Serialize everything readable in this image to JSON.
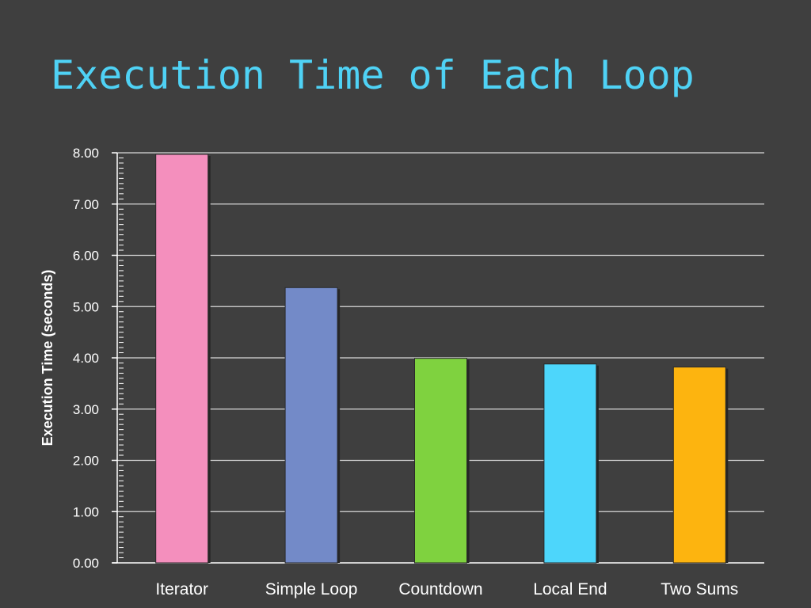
{
  "chart_data": {
    "type": "bar",
    "title": "Execution Time of Each Loop",
    "xlabel": "",
    "ylabel": "Execution Time (seconds)",
    "categories": [
      "Iterator",
      "Simple Loop",
      "Countdown",
      "Local End",
      "Two Sums"
    ],
    "values": [
      7.97,
      5.37,
      3.99,
      3.88,
      3.82
    ],
    "colors": [
      "#f48fbd",
      "#738ac8",
      "#7fd23f",
      "#4dd6fb",
      "#fdb40f"
    ],
    "ylim": [
      0,
      8
    ],
    "yticks": [
      "0.00",
      "1.00",
      "2.00",
      "3.00",
      "4.00",
      "5.00",
      "6.00",
      "7.00",
      "8.00"
    ],
    "grid": true,
    "legend": "none"
  }
}
